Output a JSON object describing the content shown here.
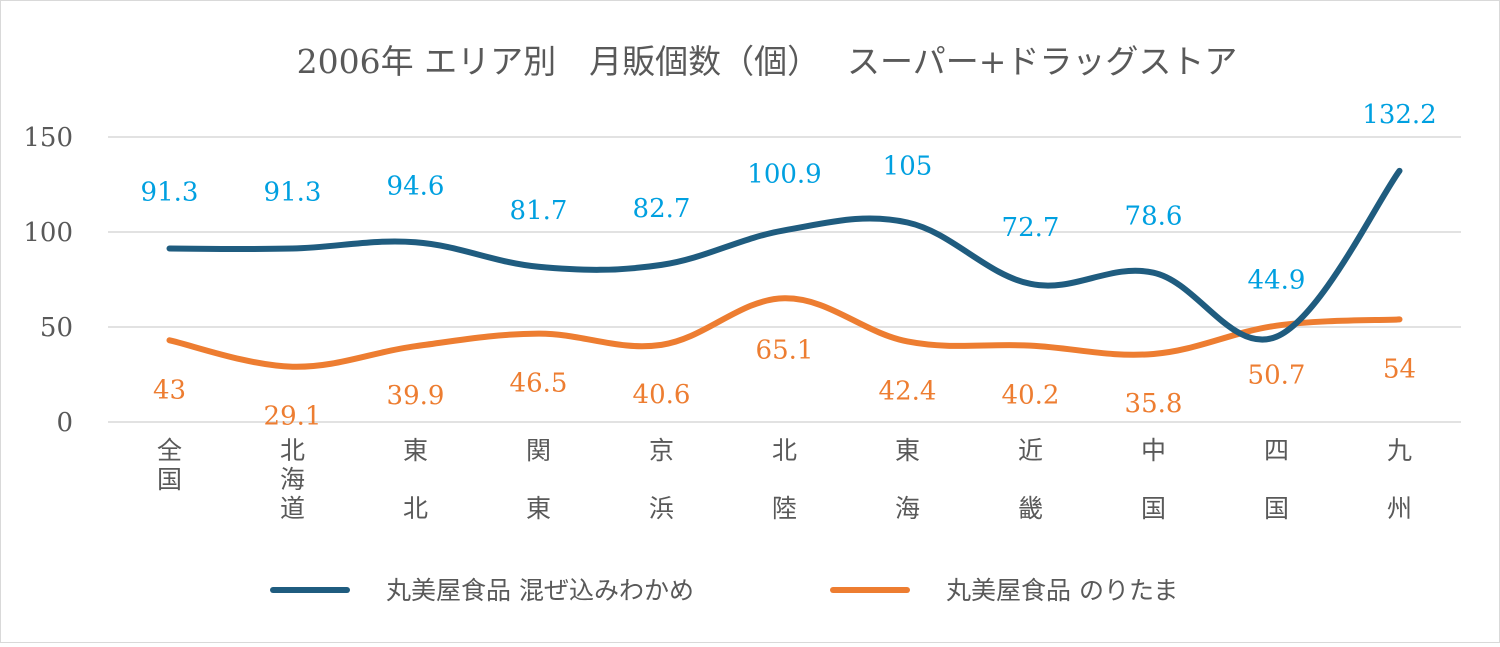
{
  "chart_data": {
    "type": "line",
    "title": "2006年 エリア別　月販個数（個）　 スーパー+ドラッグストア",
    "categories": [
      "全国",
      "北海道",
      "東北",
      "関東",
      "京浜",
      "北陸",
      "東海",
      "近畿",
      "中国",
      "四国",
      "九州"
    ],
    "category_display": [
      "全国",
      "北海道",
      "東 北",
      "関 東",
      "京 浜",
      "北 陸",
      "東 海",
      "近 畿",
      "中 国",
      "四 国",
      "九 州"
    ],
    "series": [
      {
        "name": "丸美屋食品 混ぜ込みわかめ",
        "color": "#1f5c7f",
        "label_color": "#00a0e0",
        "values": [
          91.3,
          91.3,
          94.6,
          81.7,
          82.7,
          100.9,
          105,
          72.7,
          78.6,
          44.9,
          132.2
        ],
        "labels": [
          "91.3",
          "91.3",
          "94.6",
          "81.7",
          "82.7",
          "100.9",
          "105",
          "72.7",
          "78.6",
          "44.9",
          "132.2"
        ]
      },
      {
        "name": "丸美屋食品 のりたま",
        "color": "#ed7d31",
        "label_color": "#ed7d31",
        "values": [
          43,
          29.1,
          39.9,
          46.5,
          40.6,
          65.1,
          42.4,
          40.2,
          35.8,
          50.7,
          54
        ],
        "labels": [
          "43",
          "29.1",
          "39.9",
          "46.5",
          "40.6",
          "65.1",
          "42.4",
          "40.2",
          "35.8",
          "50.7",
          "54"
        ]
      }
    ],
    "ylim": [
      0,
      150
    ],
    "yticks": [
      "0",
      "50",
      "100",
      "150"
    ],
    "grid": true,
    "legend": "bottom",
    "xlabel": "",
    "ylabel": ""
  }
}
